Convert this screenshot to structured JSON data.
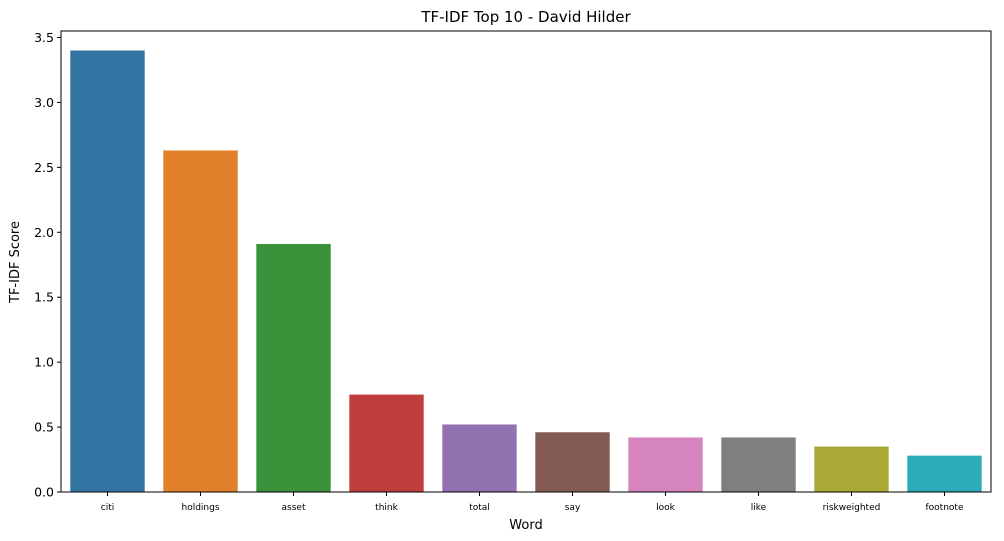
{
  "chart_data": {
    "type": "bar",
    "title": "TF-IDF Top 10 - David Hilder",
    "xlabel": "Word",
    "ylabel": "TF-IDF Score",
    "categories": [
      "citi",
      "holdings",
      "asset",
      "think",
      "total",
      "say",
      "look",
      "like",
      "riskweighted",
      "footnote"
    ],
    "values": [
      3.4,
      2.63,
      1.91,
      0.75,
      0.52,
      0.46,
      0.42,
      0.42,
      0.35,
      0.28
    ],
    "colors": [
      "#3274a1",
      "#e1812c",
      "#3a923a",
      "#c03d3e",
      "#9372b2",
      "#845b53",
      "#d684bd",
      "#7f7f7f",
      "#a9aa35",
      "#2eabb8"
    ],
    "ylim": [
      0,
      3.55
    ],
    "yticks": [
      "0.0",
      "0.5",
      "1.0",
      "1.5",
      "2.0",
      "2.5",
      "3.0",
      "3.5"
    ],
    "grid": false,
    "legend": "none"
  }
}
